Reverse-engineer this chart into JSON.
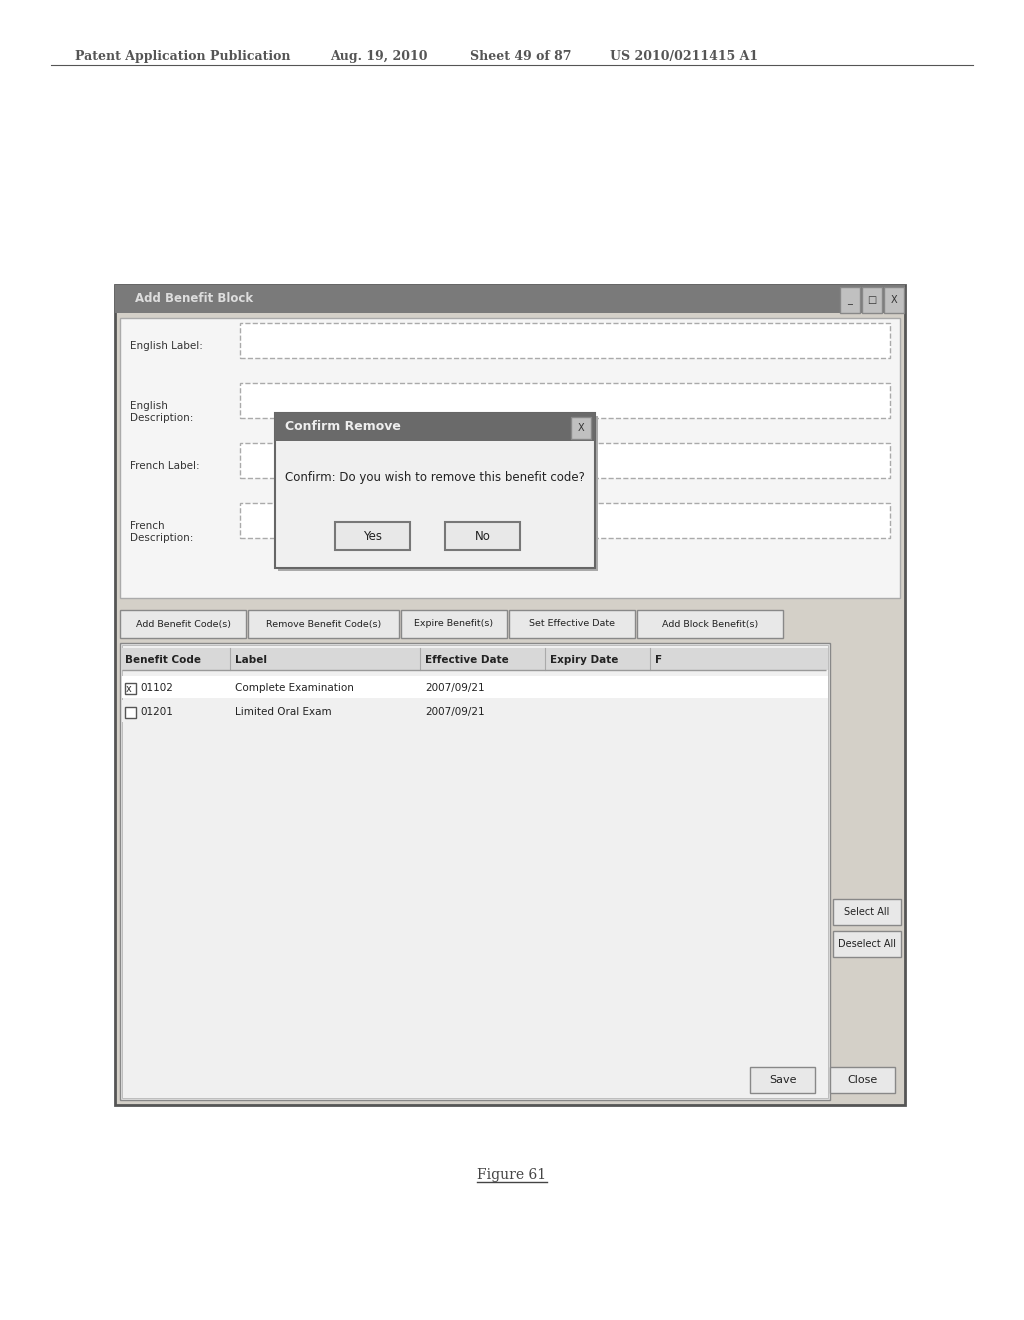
{
  "bg_color": "#ffffff",
  "header_text": "Patent Application Publication",
  "header_date": "Aug. 19, 2010",
  "header_sheet": "Sheet 49 of 87",
  "header_patent": "US 2010/0211415 A1",
  "figure_label": "Figure 61",
  "window_title": "Add Benefit Block",
  "window_bg": "#d4d0c8",
  "window_border": "#808080",
  "title_bar_bg": "#7a7a7a",
  "title_bar_text": "#ffffff",
  "form_bg": "#ffffff",
  "form_border": "#999999",
  "field_labels": [
    "English Label:",
    "English\nDescription:",
    "French Label:",
    "French\nDescription:"
  ],
  "toolbar_buttons": [
    "Add Benefit Code(s)",
    "Remove Benefit Code(s)",
    "Expire Benefit(s)",
    "Set Effective Date",
    "Add Block Benefit(s)"
  ],
  "table_headers": [
    "Benefit Code",
    "Label",
    "Effective Date",
    "Expiry Date",
    "F"
  ],
  "table_row1": [
    "[x] 01102",
    "Complete Examination",
    "2007/09/21",
    "",
    ""
  ],
  "table_row2": [
    "[ ] 01201",
    "Limited Oral Exam",
    "2007/09/21",
    "",
    ""
  ],
  "side_buttons": [
    "Select All",
    "Deselect All"
  ],
  "bottom_buttons": [
    "Save",
    "Close"
  ],
  "dialog_title": "Confirm Remove",
  "dialog_message": "Confirm: Do you wish to remove this benefit code?",
  "dialog_buttons": [
    "Yes",
    "No"
  ],
  "dialog_bg": "#f0f0f0",
  "dialog_title_bg": "#6a6a6a",
  "dialog_border": "#888888"
}
